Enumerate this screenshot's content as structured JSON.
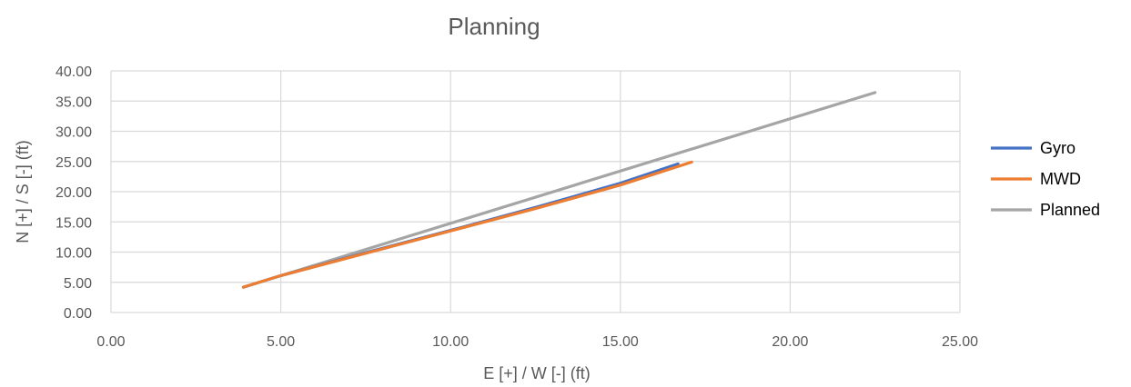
{
  "chart_data": {
    "type": "scatter",
    "title": "Planning",
    "xlabel": "E [+] / W [-] (ft)",
    "ylabel": "N [+] / S [-] (ft)",
    "xlim": [
      0,
      25
    ],
    "ylim": [
      0,
      40
    ],
    "xticks": [
      "0.00",
      "5.00",
      "10.00",
      "15.00",
      "20.00",
      "25.00"
    ],
    "yticks": [
      "0.00",
      "5.00",
      "10.00",
      "15.00",
      "20.00",
      "25.00",
      "30.00",
      "35.00",
      "40.00"
    ],
    "grid": true,
    "legend_position": "right",
    "series": [
      {
        "name": "Gyro",
        "color": "#4472C4",
        "points": [
          [
            3.9,
            4.2
          ],
          [
            5.0,
            6.1
          ],
          [
            7.5,
            9.9
          ],
          [
            10.0,
            13.6
          ],
          [
            12.5,
            17.4
          ],
          [
            15.0,
            21.4
          ],
          [
            16.7,
            24.6
          ]
        ]
      },
      {
        "name": "MWD",
        "color": "#ED7D31",
        "points": [
          [
            3.9,
            4.2
          ],
          [
            5.0,
            6.1
          ],
          [
            7.5,
            9.8
          ],
          [
            10.0,
            13.5
          ],
          [
            12.5,
            17.2
          ],
          [
            15.0,
            21.1
          ],
          [
            17.1,
            24.9
          ]
        ]
      },
      {
        "name": "Planned",
        "color": "#A5A5A5",
        "points": [
          [
            3.9,
            4.2
          ],
          [
            22.5,
            36.4
          ]
        ]
      }
    ]
  }
}
